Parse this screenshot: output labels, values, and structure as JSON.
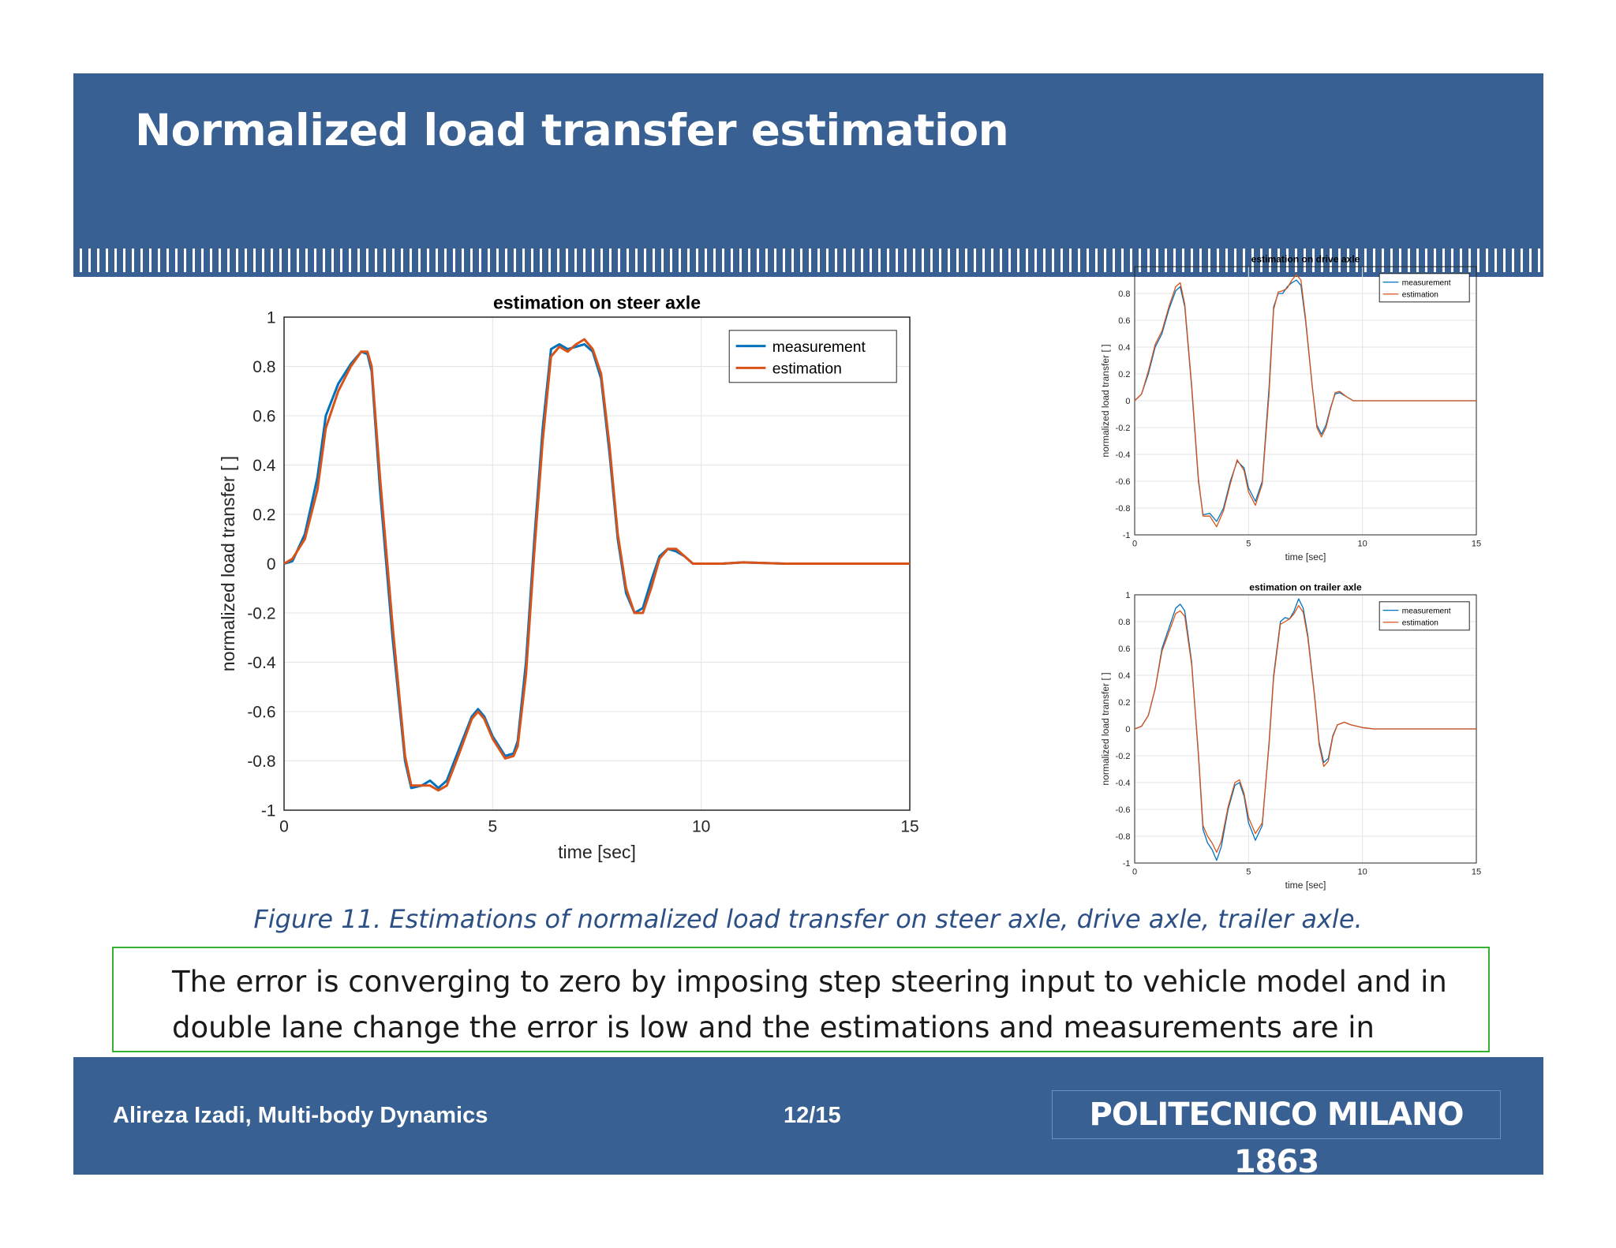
{
  "slide": {
    "title": "Normalized load transfer estimation",
    "caption": "Figure 11. Estimations of normalized load transfer on steer axle, drive axle, trailer axle.",
    "note": "The error is converging to zero by imposing step steering input to vehicle model and in double lane change the error is low and the estimations and measurements are in agreement.",
    "footer_author": "Alireza Izadi, Multi-body Dynamics",
    "footer_page": "12/15",
    "logo": "POLITECNICO MILANO 1863"
  },
  "colors": {
    "header": "#386092",
    "measurement": "#0072bd",
    "estimation": "#d95319",
    "note_border": "#33b233"
  },
  "chart_data": [
    {
      "type": "line",
      "title": "estimation on steer axle",
      "xlabel": "time [sec]",
      "ylabel": "normalized load transfer [ ]",
      "xlim": [
        0,
        15
      ],
      "ylim": [
        -1,
        1
      ],
      "xticks": [
        "0",
        "5",
        "10",
        "15"
      ],
      "yticks": [
        "-1",
        "-0.8",
        "-0.6",
        "-0.4",
        "-0.2",
        "0",
        "0.2",
        "0.4",
        "0.6",
        "0.8",
        "1"
      ],
      "grid": true,
      "legend": "top-right",
      "series": [
        {
          "name": "measurement",
          "x": [
            0,
            0.2,
            0.5,
            0.8,
            1.0,
            1.3,
            1.6,
            1.85,
            2.0,
            2.1,
            2.3,
            2.6,
            2.9,
            3.05,
            3.3,
            3.5,
            3.7,
            3.9,
            4.2,
            4.5,
            4.65,
            4.8,
            5.0,
            5.3,
            5.5,
            5.6,
            5.8,
            6.0,
            6.2,
            6.4,
            6.6,
            6.8,
            7.0,
            7.2,
            7.4,
            7.6,
            7.8,
            8.0,
            8.2,
            8.4,
            8.6,
            8.8,
            9.0,
            9.2,
            9.4,
            9.6,
            9.8,
            10.0,
            10.5,
            11,
            12,
            13,
            14,
            15
          ],
          "y": [
            0,
            0.01,
            0.12,
            0.35,
            0.6,
            0.73,
            0.81,
            0.86,
            0.85,
            0.78,
            0.3,
            -0.3,
            -0.8,
            -0.91,
            -0.9,
            -0.88,
            -0.91,
            -0.88,
            -0.75,
            -0.62,
            -0.59,
            -0.62,
            -0.7,
            -0.78,
            -0.77,
            -0.72,
            -0.4,
            0.1,
            0.55,
            0.87,
            0.89,
            0.87,
            0.88,
            0.89,
            0.86,
            0.75,
            0.45,
            0.1,
            -0.12,
            -0.2,
            -0.18,
            -0.07,
            0.03,
            0.06,
            0.05,
            0.03,
            0.0,
            0.0,
            0.0,
            0.005,
            0.0,
            0.0,
            0.0,
            0.0
          ]
        },
        {
          "name": "estimation",
          "x": [
            0,
            0.2,
            0.5,
            0.8,
            1.0,
            1.3,
            1.6,
            1.85,
            2.0,
            2.1,
            2.3,
            2.6,
            2.9,
            3.05,
            3.3,
            3.5,
            3.7,
            3.9,
            4.2,
            4.5,
            4.65,
            4.8,
            5.0,
            5.3,
            5.5,
            5.6,
            5.8,
            6.0,
            6.2,
            6.4,
            6.6,
            6.8,
            7.0,
            7.2,
            7.4,
            7.6,
            7.8,
            8.0,
            8.2,
            8.4,
            8.6,
            8.8,
            9.0,
            9.2,
            9.4,
            9.6,
            9.8,
            10.0,
            10.5,
            11,
            12,
            13,
            14,
            15
          ],
          "y": [
            0,
            0.02,
            0.1,
            0.3,
            0.55,
            0.7,
            0.8,
            0.86,
            0.86,
            0.8,
            0.35,
            -0.25,
            -0.78,
            -0.9,
            -0.9,
            -0.9,
            -0.92,
            -0.9,
            -0.77,
            -0.63,
            -0.6,
            -0.63,
            -0.71,
            -0.79,
            -0.78,
            -0.74,
            -0.45,
            0.05,
            0.5,
            0.84,
            0.88,
            0.86,
            0.89,
            0.91,
            0.87,
            0.77,
            0.48,
            0.12,
            -0.1,
            -0.2,
            -0.2,
            -0.1,
            0.02,
            0.06,
            0.06,
            0.03,
            0.0,
            0.0,
            0.0,
            0.005,
            0.0,
            0.0,
            0.0,
            0.0
          ]
        }
      ]
    },
    {
      "type": "line",
      "title": "estimation on drive axle",
      "xlabel": "time [sec]",
      "ylabel": "normalized load transfer [ ]",
      "xlim": [
        0,
        15
      ],
      "ylim": [
        -1,
        1
      ],
      "xticks": [
        "0",
        "5",
        "10",
        "15"
      ],
      "yticks": [
        "-1",
        "-0.8",
        "-0.6",
        "-0.4",
        "-0.2",
        "0",
        "0.2",
        "0.4",
        "0.6",
        "0.8"
      ],
      "grid": true,
      "legend": "top-right",
      "series": [
        {
          "name": "measurement",
          "x": [
            0,
            0.3,
            0.6,
            0.9,
            1.2,
            1.5,
            1.8,
            2.0,
            2.2,
            2.5,
            2.8,
            3.0,
            3.3,
            3.6,
            3.9,
            4.2,
            4.5,
            4.8,
            5.0,
            5.3,
            5.6,
            5.9,
            6.1,
            6.3,
            6.5,
            6.7,
            6.9,
            7.1,
            7.3,
            7.5,
            7.8,
            8.0,
            8.2,
            8.4,
            8.6,
            8.8,
            9.0,
            9.3,
            9.6,
            10.0,
            10.5,
            11,
            12,
            13,
            15
          ],
          "y": [
            0,
            0.05,
            0.2,
            0.4,
            0.5,
            0.68,
            0.82,
            0.85,
            0.7,
            0.1,
            -0.6,
            -0.85,
            -0.84,
            -0.9,
            -0.8,
            -0.6,
            -0.45,
            -0.5,
            -0.65,
            -0.75,
            -0.6,
            0.1,
            0.7,
            0.8,
            0.8,
            0.85,
            0.88,
            0.9,
            0.86,
            0.6,
            0.1,
            -0.18,
            -0.25,
            -0.18,
            -0.05,
            0.05,
            0.06,
            0.03,
            0.0,
            0.0,
            0.0,
            0.0,
            0.0,
            0.0,
            0.0
          ]
        },
        {
          "name": "estimation",
          "x": [
            0,
            0.3,
            0.6,
            0.9,
            1.2,
            1.5,
            1.8,
            2.0,
            2.2,
            2.5,
            2.8,
            3.0,
            3.3,
            3.6,
            3.9,
            4.2,
            4.5,
            4.8,
            5.0,
            5.3,
            5.6,
            5.9,
            6.1,
            6.3,
            6.5,
            6.7,
            6.9,
            7.1,
            7.3,
            7.5,
            7.8,
            8.0,
            8.2,
            8.4,
            8.6,
            8.8,
            9.0,
            9.3,
            9.6,
            10.0,
            10.5,
            11,
            12,
            13,
            15
          ],
          "y": [
            0,
            0.05,
            0.22,
            0.42,
            0.52,
            0.7,
            0.85,
            0.88,
            0.72,
            0.12,
            -0.58,
            -0.86,
            -0.86,
            -0.94,
            -0.82,
            -0.62,
            -0.44,
            -0.52,
            -0.68,
            -0.78,
            -0.62,
            0.05,
            0.68,
            0.81,
            0.82,
            0.84,
            0.9,
            0.94,
            0.9,
            0.62,
            0.1,
            -0.2,
            -0.27,
            -0.2,
            -0.06,
            0.06,
            0.07,
            0.03,
            0.0,
            0.0,
            0.0,
            0.0,
            0.0,
            0.0,
            0.0
          ]
        }
      ]
    },
    {
      "type": "line",
      "title": "estimation on trailer axle",
      "xlabel": "time [sec]",
      "ylabel": "normalized load transfer [ ]",
      "xlim": [
        0,
        15
      ],
      "ylim": [
        -1,
        1
      ],
      "xticks": [
        "0",
        "5",
        "10",
        "15"
      ],
      "yticks": [
        "-1",
        "-0.8",
        "-0.6",
        "-0.4",
        "-0.2",
        "0",
        "0.2",
        "0.4",
        "0.6",
        "0.8",
        "1"
      ],
      "grid": true,
      "legend": "top-right",
      "series": [
        {
          "name": "measurement",
          "x": [
            0,
            0.3,
            0.6,
            0.9,
            1.2,
            1.5,
            1.8,
            2.0,
            2.2,
            2.5,
            2.8,
            3.0,
            3.2,
            3.4,
            3.6,
            3.8,
            4.1,
            4.4,
            4.6,
            4.8,
            5.0,
            5.3,
            5.6,
            5.9,
            6.1,
            6.4,
            6.6,
            6.8,
            7.0,
            7.2,
            7.4,
            7.6,
            7.9,
            8.1,
            8.3,
            8.5,
            8.7,
            8.9,
            9.2,
            9.5,
            10.0,
            10.5,
            11,
            12,
            13,
            15
          ],
          "y": [
            0,
            0.02,
            0.1,
            0.3,
            0.6,
            0.75,
            0.9,
            0.93,
            0.88,
            0.5,
            -0.2,
            -0.75,
            -0.85,
            -0.9,
            -0.98,
            -0.88,
            -0.6,
            -0.42,
            -0.4,
            -0.5,
            -0.7,
            -0.83,
            -0.72,
            -0.1,
            0.4,
            0.8,
            0.83,
            0.82,
            0.88,
            0.97,
            0.9,
            0.7,
            0.25,
            -0.1,
            -0.25,
            -0.22,
            -0.05,
            0.03,
            0.05,
            0.03,
            0.01,
            0.0,
            0.0,
            0.0,
            0.0,
            0.0
          ]
        },
        {
          "name": "estimation",
          "x": [
            0,
            0.3,
            0.6,
            0.9,
            1.2,
            1.5,
            1.8,
            2.0,
            2.2,
            2.5,
            2.8,
            3.0,
            3.2,
            3.4,
            3.6,
            3.8,
            4.1,
            4.4,
            4.6,
            4.8,
            5.0,
            5.3,
            5.6,
            5.9,
            6.1,
            6.4,
            6.6,
            6.8,
            7.0,
            7.2,
            7.4,
            7.6,
            7.9,
            8.1,
            8.3,
            8.5,
            8.7,
            8.9,
            9.2,
            9.5,
            10.0,
            10.5,
            11,
            12,
            13,
            15
          ],
          "y": [
            0,
            0.02,
            0.1,
            0.3,
            0.58,
            0.72,
            0.86,
            0.88,
            0.84,
            0.48,
            -0.18,
            -0.72,
            -0.8,
            -0.85,
            -0.92,
            -0.84,
            -0.58,
            -0.4,
            -0.38,
            -0.48,
            -0.66,
            -0.78,
            -0.7,
            -0.12,
            0.38,
            0.78,
            0.8,
            0.82,
            0.86,
            0.92,
            0.87,
            0.68,
            0.24,
            -0.12,
            -0.28,
            -0.24,
            -0.06,
            0.03,
            0.05,
            0.03,
            0.01,
            0.0,
            0.0,
            0.0,
            0.0,
            0.0
          ]
        }
      ]
    }
  ]
}
